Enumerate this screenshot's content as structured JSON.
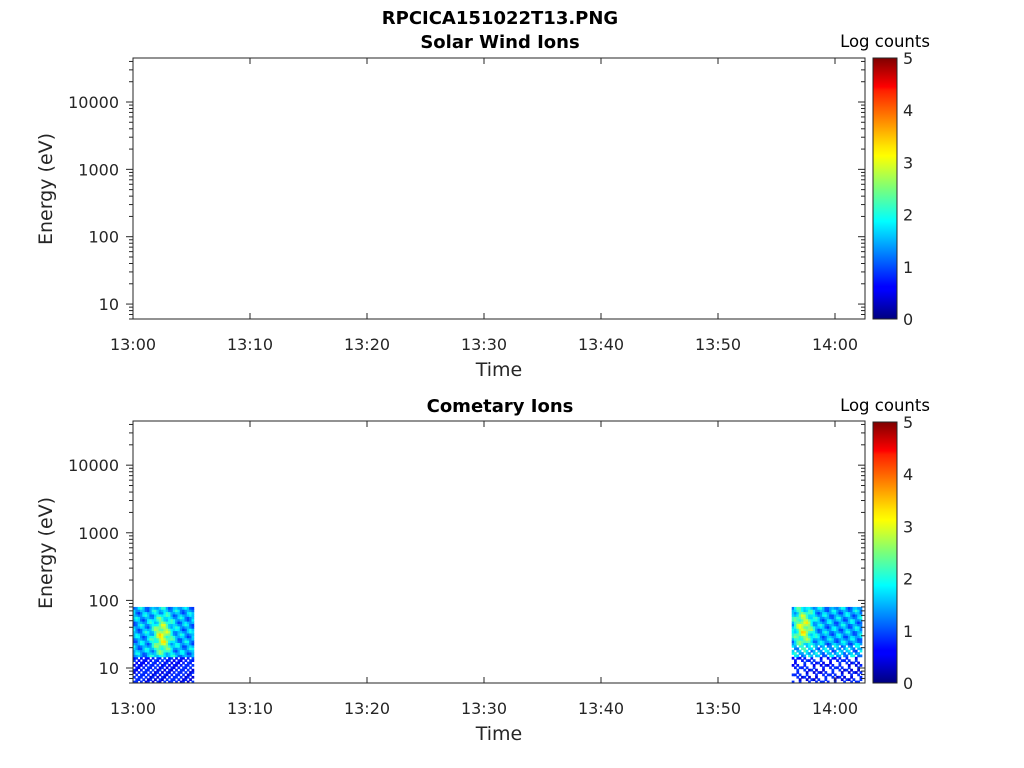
{
  "figure": {
    "title": "RPCICA151022T13.PNG"
  },
  "chart_data": [
    {
      "type": "heatmap",
      "title": "Solar Wind Ions",
      "xlabel": "Time",
      "ylabel": "Energy (eV)",
      "x_ticks": [
        "13:00",
        "13:10",
        "13:20",
        "13:30",
        "13:40",
        "13:50",
        "14:00"
      ],
      "y_ticks": [
        "10",
        "100",
        "1000",
        "10000"
      ],
      "y_scale": "log",
      "ylim": [
        6,
        45000
      ],
      "xlim": [
        "13:00",
        "14:02"
      ],
      "colorbar": {
        "label": "Log counts",
        "ticks": [
          "0",
          "1",
          "2",
          "3",
          "4",
          "5"
        ],
        "range": [
          0,
          5
        ],
        "colormap": "jet"
      },
      "blocks": []
    },
    {
      "type": "heatmap",
      "title": "Cometary Ions",
      "xlabel": "Time",
      "ylabel": "Energy (eV)",
      "x_ticks": [
        "13:00",
        "13:10",
        "13:20",
        "13:30",
        "13:40",
        "13:50",
        "14:00"
      ],
      "y_ticks": [
        "10",
        "100",
        "1000",
        "10000"
      ],
      "y_scale": "log",
      "ylim": [
        6,
        45000
      ],
      "xlim": [
        "13:00",
        "14:02"
      ],
      "colorbar": {
        "label": "Log counts",
        "ticks": [
          "0",
          "1",
          "2",
          "3",
          "4",
          "5"
        ],
        "range": [
          0,
          5
        ],
        "colormap": "jet"
      },
      "blocks": [
        {
          "t_start_min": 0,
          "t_end_min": 5.1,
          "e_min": 6,
          "e_max": 80,
          "peak_log_counts": 3.0,
          "peak_time_min": 2.4,
          "peak_energy": 30
        },
        {
          "t_start_min": 56.3,
          "t_end_min": 62.2,
          "e_min": 6,
          "e_max": 80,
          "peak_log_counts": 3.0,
          "peak_time_min": 57.2,
          "peak_energy": 40
        }
      ]
    }
  ]
}
